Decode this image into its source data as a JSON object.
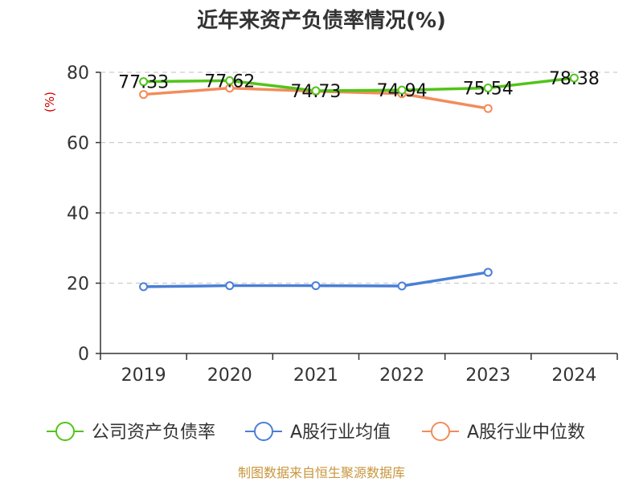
{
  "chart_data": {
    "type": "line",
    "title": "近年来资产负债率情况(%)",
    "ylabel": "(%)",
    "xlabel": "",
    "categories": [
      "2019",
      "2020",
      "2021",
      "2022",
      "2023",
      "2024"
    ],
    "ylim": [
      0,
      80
    ],
    "yticks": [
      0,
      20,
      40,
      60,
      80
    ],
    "grid": true,
    "legend_position": "bottom",
    "series": [
      {
        "name": "公司资产负债率",
        "color": "#52c41a",
        "values": [
          77.33,
          77.62,
          74.73,
          74.94,
          75.54,
          78.38
        ],
        "labels": [
          "77.33",
          "77.62",
          "74.73",
          "74.94",
          "75.54",
          "78.38"
        ]
      },
      {
        "name": "A股行业均值",
        "color": "#4a7fd6",
        "values": [
          19.0,
          19.3,
          19.3,
          19.2,
          23.1,
          null
        ]
      },
      {
        "name": "A股行业中位数",
        "color": "#f28c5a",
        "values": [
          73.7,
          75.5,
          74.6,
          73.9,
          69.7,
          null
        ]
      }
    ],
    "source": "制图数据来自恒生聚源数据库"
  }
}
